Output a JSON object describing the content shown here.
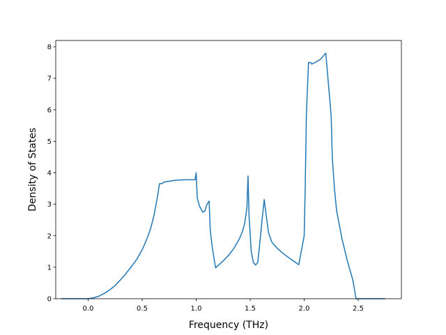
{
  "chart_data": {
    "type": "line",
    "title": "",
    "xlabel": "Frequency (THz)",
    "ylabel": "Density of States",
    "xlim": [
      -0.3,
      2.9
    ],
    "ylim": [
      0,
      8.2
    ],
    "xticks": [
      0.0,
      0.5,
      1.0,
      1.5,
      2.0,
      2.5
    ],
    "xtick_labels": [
      "0.0",
      "0.5",
      "1.0",
      "1.5",
      "2.0",
      "2.5"
    ],
    "yticks": [
      0,
      1,
      2,
      3,
      4,
      5,
      6,
      7,
      8
    ],
    "ytick_labels": [
      "0",
      "1",
      "2",
      "3",
      "4",
      "5",
      "6",
      "7",
      "8"
    ],
    "grid": false,
    "line_color": "#1f77b4",
    "series": [
      {
        "x": [
          -0.25,
          -0.1,
          0.0,
          0.05,
          0.1,
          0.15,
          0.2,
          0.25,
          0.3,
          0.35,
          0.4,
          0.45,
          0.5,
          0.55,
          0.58,
          0.61,
          0.64,
          0.66,
          0.68,
          0.7,
          0.75,
          0.8,
          0.85,
          0.9,
          0.95,
          0.99,
          1.0,
          1.01,
          1.03,
          1.06,
          1.08,
          1.1,
          1.12,
          1.13,
          1.15,
          1.18,
          1.25,
          1.3,
          1.35,
          1.4,
          1.43,
          1.45,
          1.47,
          1.48,
          1.49,
          1.51,
          1.53,
          1.55,
          1.57,
          1.59,
          1.61,
          1.63,
          1.65,
          1.67,
          1.7,
          1.75,
          1.8,
          1.85,
          1.9,
          1.95,
          2.0,
          2.01,
          2.02,
          2.04,
          2.06,
          2.07,
          2.1,
          2.15,
          2.2,
          2.25,
          2.26,
          2.28,
          2.3,
          2.35,
          2.4,
          2.45,
          2.48,
          2.5,
          2.75
        ],
        "y": [
          0.0,
          0.0,
          0.0,
          0.03,
          0.08,
          0.17,
          0.28,
          0.42,
          0.6,
          0.8,
          1.02,
          1.25,
          1.55,
          1.95,
          2.25,
          2.65,
          3.2,
          3.65,
          3.65,
          3.7,
          3.73,
          3.76,
          3.77,
          3.78,
          3.78,
          3.78,
          4.0,
          3.2,
          2.95,
          2.75,
          2.78,
          3.0,
          3.1,
          2.2,
          1.6,
          0.98,
          1.2,
          1.38,
          1.6,
          1.9,
          2.15,
          2.4,
          2.9,
          3.9,
          2.6,
          1.5,
          1.15,
          1.07,
          1.15,
          1.8,
          2.5,
          3.15,
          2.6,
          2.1,
          1.8,
          1.6,
          1.45,
          1.32,
          1.2,
          1.08,
          2.0,
          3.6,
          5.8,
          7.5,
          7.5,
          7.45,
          7.5,
          7.6,
          7.8,
          5.8,
          4.5,
          3.5,
          2.8,
          1.9,
          1.2,
          0.6,
          0.0,
          0.0,
          0.0
        ]
      }
    ]
  }
}
